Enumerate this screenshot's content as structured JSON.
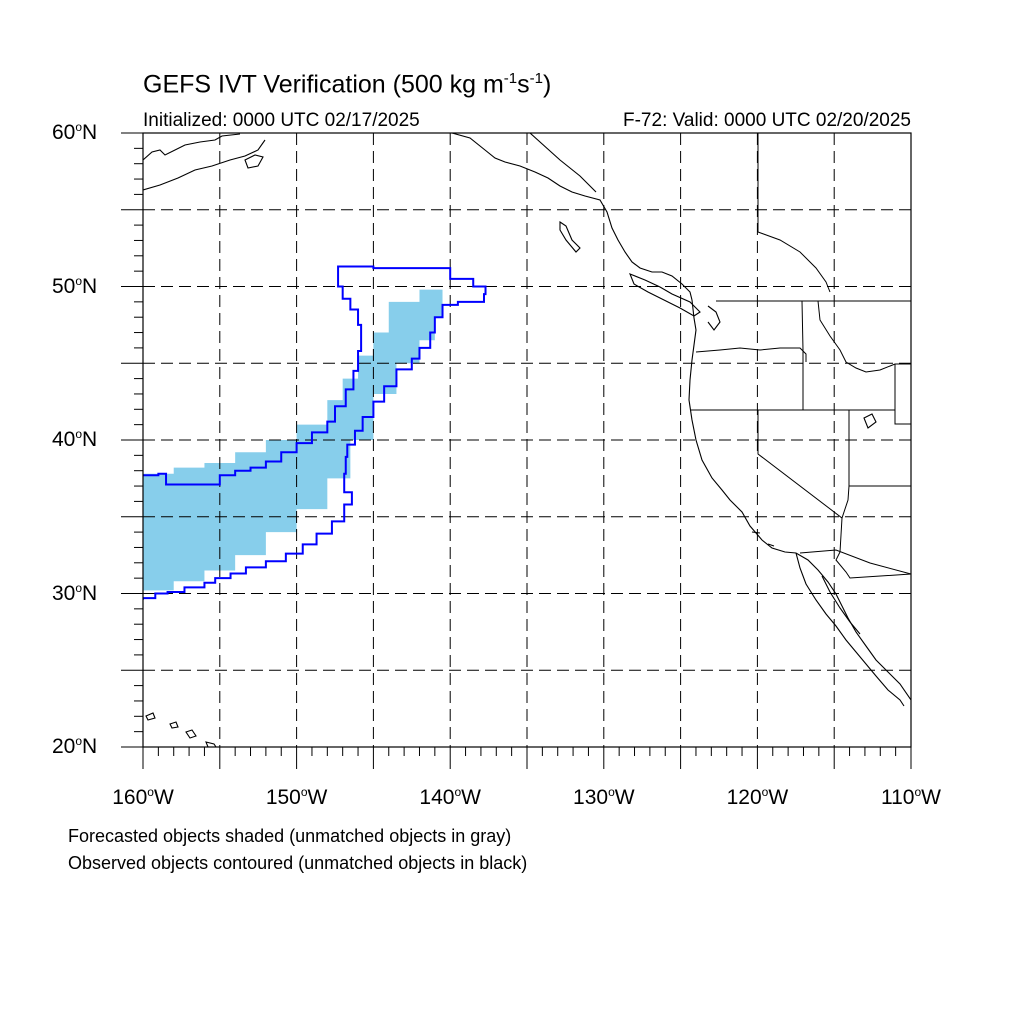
{
  "title": {
    "main": "GEFS IVT Verification (500 kg m",
    "sup1": "-1",
    "mid": "s",
    "sup2": "-1",
    "end": ")"
  },
  "subtitle": {
    "initialized": "Initialized: 0000 UTC 02/17/2025",
    "valid": "F-72: Valid: 0000 UTC 02/20/2025"
  },
  "map": {
    "lon_range": [
      -160,
      -110
    ],
    "lat_range": [
      20,
      60
    ],
    "grid": "dashed",
    "lat_labels": [
      {
        "deg": "60",
        "hemi": "N",
        "lat": 60
      },
      {
        "deg": "50",
        "hemi": "N",
        "lat": 50
      },
      {
        "deg": "40",
        "hemi": "N",
        "lat": 40
      },
      {
        "deg": "30",
        "hemi": "N",
        "lat": 30
      },
      {
        "deg": "20",
        "hemi": "N",
        "lat": 20
      }
    ],
    "lon_labels": [
      {
        "deg": "160",
        "hemi": "W",
        "lon": -160
      },
      {
        "deg": "150",
        "hemi": "W",
        "lon": -150
      },
      {
        "deg": "140",
        "hemi": "W",
        "lon": -140
      },
      {
        "deg": "130",
        "hemi": "W",
        "lon": -130
      },
      {
        "deg": "120",
        "hemi": "W",
        "lon": -120
      },
      {
        "deg": "110",
        "hemi": "W",
        "lon": -110
      }
    ],
    "colors": {
      "forecast_fill": "#87ceeb",
      "observed_contour": "#0000ff",
      "coastline": "#000000",
      "grid": "#000000"
    },
    "forecast_object": {
      "upper_edge": [
        [
          -160,
          37.8
        ],
        [
          -158,
          38.2
        ],
        [
          -156,
          38.5
        ],
        [
          -154,
          39.2
        ],
        [
          -152,
          40
        ],
        [
          -150,
          41
        ],
        [
          -148,
          42.6
        ],
        [
          -147,
          44
        ],
        [
          -146,
          45.5
        ],
        [
          -145,
          47
        ],
        [
          -144,
          49
        ],
        [
          -142,
          49.8
        ],
        [
          -140.5,
          49.5
        ]
      ],
      "lower_edge": [
        [
          -140.5,
          48
        ],
        [
          -141,
          46.5
        ],
        [
          -142,
          45
        ],
        [
          -143.5,
          43
        ],
        [
          -145,
          40
        ],
        [
          -146.5,
          37.5
        ],
        [
          -148,
          35.5
        ],
        [
          -150,
          34
        ],
        [
          -152,
          32.5
        ],
        [
          -154,
          31.5
        ],
        [
          -156,
          30.8
        ],
        [
          -158,
          30.2
        ],
        [
          -160,
          29.8
        ]
      ]
    },
    "observed_object": [
      [
        -160,
        37.7
      ],
      [
        -159,
        37.8
      ],
      [
        -158.5,
        37.1
      ],
      [
        -157,
        37.1
      ],
      [
        -155.5,
        37.1
      ],
      [
        -155,
        37.7
      ],
      [
        -154,
        38
      ],
      [
        -153,
        38.2
      ],
      [
        -152,
        38.6
      ],
      [
        -151,
        39.2
      ],
      [
        -150,
        39.8
      ],
      [
        -149,
        40.5
      ],
      [
        -148,
        41.2
      ],
      [
        -147.5,
        42.2
      ],
      [
        -146.8,
        43.3
      ],
      [
        -146.3,
        44.5
      ],
      [
        -146,
        45.8
      ],
      [
        -145.8,
        47.5
      ],
      [
        -146,
        48.5
      ],
      [
        -146.5,
        49.2
      ],
      [
        -147,
        50
      ],
      [
        -147.3,
        51.3
      ],
      [
        -146,
        51.3
      ],
      [
        -145,
        51.2
      ],
      [
        -143,
        51.2
      ],
      [
        -141,
        51.2
      ],
      [
        -140,
        50.5
      ],
      [
        -138.5,
        50
      ],
      [
        -137.7,
        49.5
      ],
      [
        -137.8,
        49
      ],
      [
        -139.5,
        48.8
      ],
      [
        -140.5,
        48
      ],
      [
        -141,
        47
      ],
      [
        -141.3,
        46
      ],
      [
        -142,
        45.3
      ],
      [
        -142.5,
        44.6
      ],
      [
        -143.5,
        43.5
      ],
      [
        -144.3,
        42.5
      ],
      [
        -145,
        41.5
      ],
      [
        -145.7,
        40.6
      ],
      [
        -146.2,
        39.7
      ],
      [
        -146.7,
        38.9
      ],
      [
        -146.8,
        37.8
      ],
      [
        -146.9,
        36.6
      ],
      [
        -146.4,
        35.8
      ],
      [
        -146.9,
        34.7
      ],
      [
        -147.7,
        33.9
      ],
      [
        -148.7,
        33.2
      ],
      [
        -149.6,
        32.6
      ],
      [
        -150.7,
        32.1
      ],
      [
        -152,
        31.7
      ],
      [
        -153.3,
        31.3
      ],
      [
        -154.3,
        31
      ],
      [
        -155.3,
        30.7
      ],
      [
        -156,
        30.4
      ],
      [
        -157.3,
        30.1
      ],
      [
        -158.4,
        30
      ],
      [
        -159.2,
        29.7
      ],
      [
        -160,
        29.6
      ]
    ]
  },
  "footnotes": {
    "line1": "Forecasted objects shaded (unmatched objects in gray)",
    "line2": "Observed objects contoured (unmatched objects in black)"
  }
}
